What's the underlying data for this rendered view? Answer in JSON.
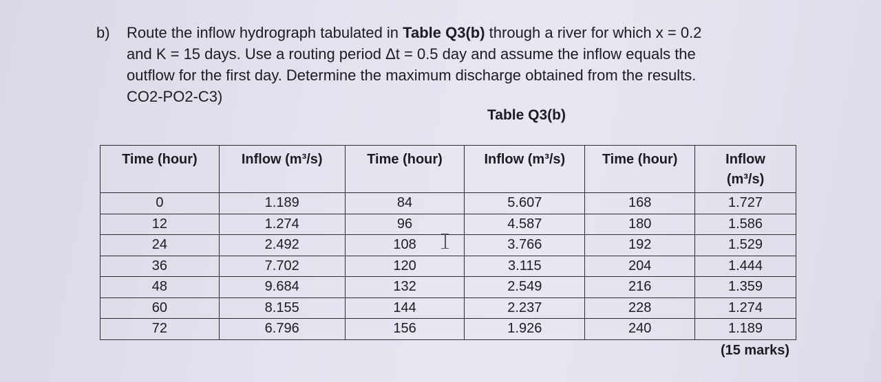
{
  "question": {
    "label": "b)",
    "line1_pre": "Route the inflow hydrograph tabulated in ",
    "line1_bold": "Table Q3(b)",
    "line1_post": " through a river for which x = 0.2",
    "line2": "and K =  15 days. Use a routing period Δt = 0.5 day and assume the inflow equals the",
    "line3": "outflow for the first day. Determine the maximum discharge obtained from the results.",
    "line4": "CO2-PO2-C3)"
  },
  "table_title": "Table Q3(b)",
  "table": {
    "headers": [
      "Time (hour)",
      "Inflow (m³/s)",
      "Time (hour)",
      "Inflow (m³/s)",
      "Time (hour)",
      "Inflow\n(m³/s)"
    ],
    "rows": [
      [
        "0",
        "1.189",
        "84",
        "5.607",
        "168",
        "1.727"
      ],
      [
        "12",
        "1.274",
        "96",
        "4.587",
        "180",
        "1.586"
      ],
      [
        "24",
        "2.492",
        "108",
        "3.766",
        "192",
        "1.529"
      ],
      [
        "36",
        "7.702",
        "120",
        "3.115",
        "204",
        "1.444"
      ],
      [
        "48",
        "9.684",
        "132",
        "2.549",
        "216",
        "1.359"
      ],
      [
        "60",
        "8.155",
        "144",
        "2.237",
        "228",
        "1.274"
      ],
      [
        "72",
        "6.796",
        "156",
        "1.926",
        "240",
        "1.189"
      ]
    ]
  },
  "marks": "(15 marks)"
}
